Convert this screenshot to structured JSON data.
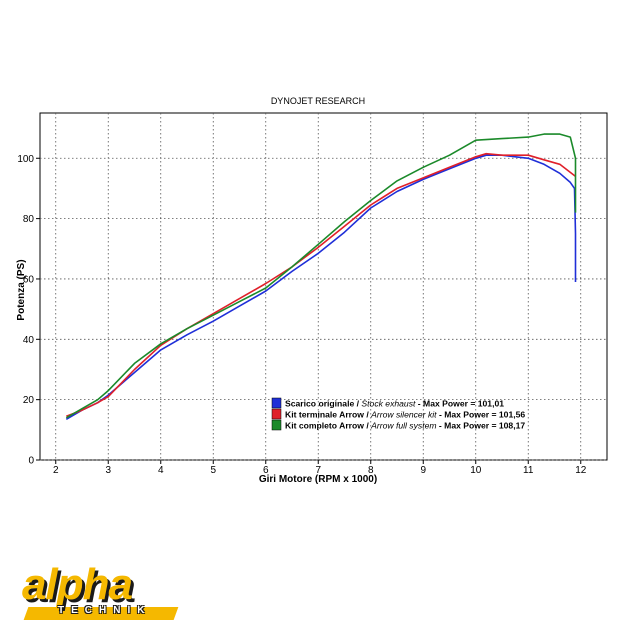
{
  "chart_data": {
    "type": "line",
    "title": "DYNOJET RESEARCH",
    "xlabel": "Giri Motore (RPM x 1000)",
    "ylabel": "Potenza (PS)",
    "xlim": [
      1.7,
      12.5
    ],
    "ylim": [
      0,
      115
    ],
    "x_ticks": [
      2,
      3,
      4,
      5,
      6,
      7,
      8,
      9,
      10,
      11,
      12
    ],
    "y_ticks": [
      0,
      20,
      40,
      60,
      80,
      100
    ],
    "grid": true,
    "legend_position": "bottom-right",
    "series": [
      {
        "name": "Scarico originale / Stock exhaust - Max Power = 101,01",
        "legend_parts": [
          "Scarico originale / ",
          "Stock exhaust",
          " - Max Power = 101,01"
        ],
        "color": "#1f2fd8",
        "x": [
          2.2,
          2.5,
          2.8,
          3.0,
          3.5,
          4.0,
          4.5,
          5.0,
          5.5,
          6.0,
          6.5,
          7.0,
          7.5,
          8.0,
          8.5,
          9.0,
          9.5,
          10.0,
          10.2,
          10.5,
          11.0,
          11.3,
          11.6,
          11.8,
          11.88,
          11.9,
          11.9
        ],
        "y": [
          13.5,
          16.5,
          19,
          21.5,
          29,
          36.5,
          41.5,
          46,
          51,
          56,
          62.5,
          68.5,
          75.5,
          83.5,
          89,
          93,
          96.5,
          100,
          101,
          101,
          100,
          98,
          95,
          92,
          90,
          75,
          59
        ]
      },
      {
        "name": "Kit terminale Arrow / Arrow silencer kit - Max Power = 101,56",
        "legend_parts": [
          "Kit terminale Arrow / ",
          "Arrow silencer kit",
          " - Max Power = 101,56"
        ],
        "color": "#e0202a",
        "x": [
          2.2,
          2.5,
          2.8,
          3.0,
          3.5,
          4.0,
          4.5,
          5.0,
          5.5,
          6.0,
          6.5,
          7.0,
          7.5,
          8.0,
          8.5,
          9.0,
          9.5,
          10.0,
          10.2,
          10.5,
          11.0,
          11.3,
          11.6,
          11.9
        ],
        "y": [
          14.5,
          16.5,
          19,
          21,
          30,
          38,
          43.5,
          48.5,
          53.5,
          58.5,
          64,
          70.5,
          77.5,
          84.5,
          90,
          93.5,
          97,
          100.5,
          101.5,
          101,
          101,
          99.5,
          98,
          94
        ]
      },
      {
        "name": "Kit completo Arrow / Arrow full system - Max Power = 108,17",
        "legend_parts": [
          "Kit completo Arrow / ",
          "Arrow full system",
          " - Max Power = 108,17"
        ],
        "color": "#1b8a2a",
        "x": [
          2.2,
          2.5,
          2.8,
          3.0,
          3.5,
          4.0,
          4.5,
          5.0,
          5.5,
          6.0,
          6.5,
          7.0,
          7.5,
          8.0,
          8.5,
          9.0,
          9.5,
          10.0,
          10.5,
          11.0,
          11.3,
          11.6,
          11.8,
          11.9,
          11.9
        ],
        "y": [
          14,
          17,
          20,
          23,
          32,
          38.5,
          43.5,
          48,
          52.5,
          57,
          64,
          71.5,
          79,
          86,
          92.5,
          97,
          101,
          106,
          106.5,
          107,
          108,
          108,
          107,
          100,
          82
        ]
      }
    ]
  },
  "logo": {
    "word": "alpha",
    "sub": "TECHNIK",
    "color": "#f5b800"
  }
}
